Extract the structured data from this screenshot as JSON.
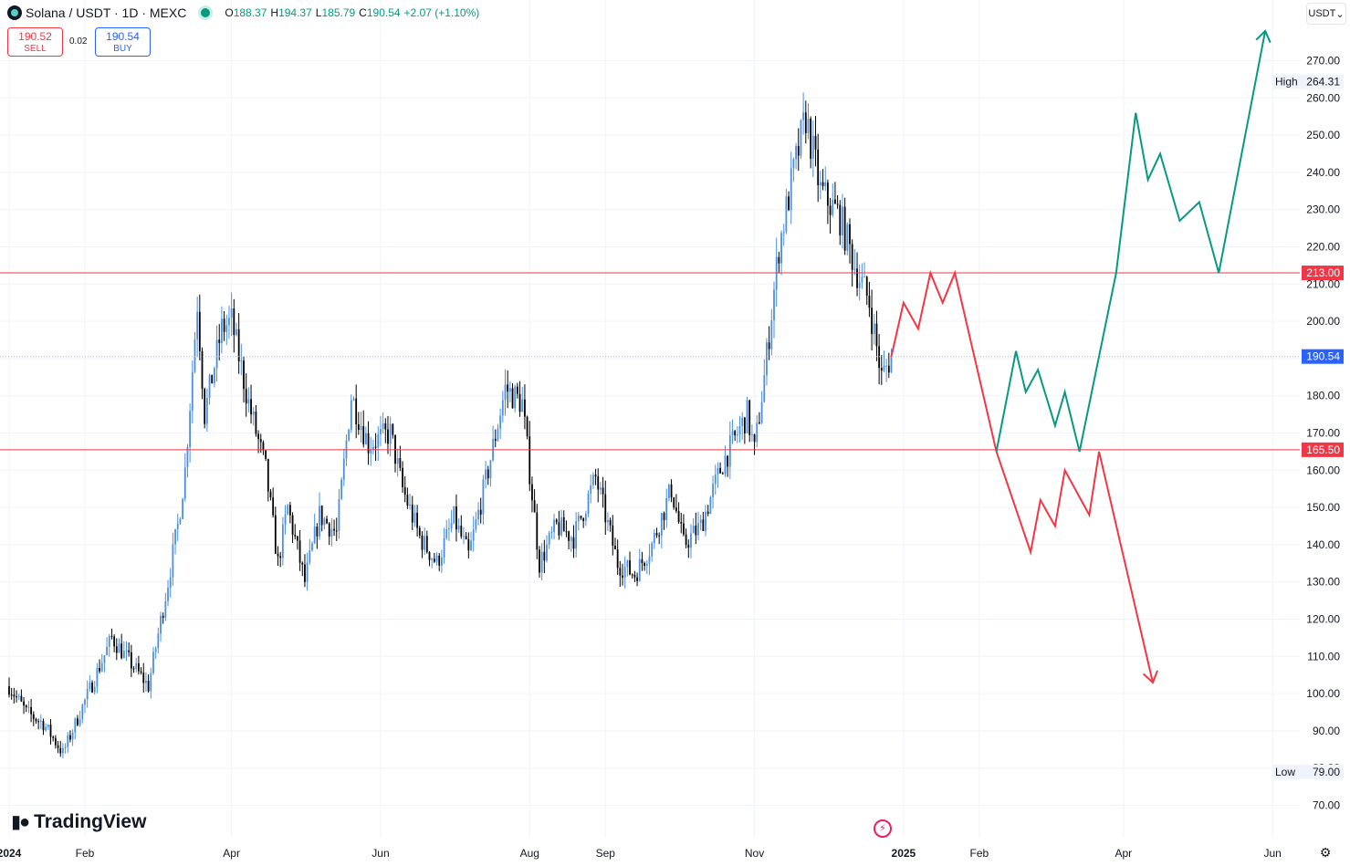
{
  "header": {
    "symbol": "Solana / USDT · 1D · MEXC",
    "open_label": "O",
    "open": "188.37",
    "high_label": "H",
    "high": "194.37",
    "low_label": "L",
    "low": "185.79",
    "close_label": "C",
    "close": "190.54",
    "change": "+2.07 (+1.10%)"
  },
  "trade": {
    "sell_price": "190.52",
    "sell_label": "SELL",
    "spread": "0.02",
    "buy_price": "190.54",
    "buy_label": "BUY"
  },
  "currency_selector": "USDT",
  "watermark": "TradingView",
  "colors": {
    "up": "#4a90e2",
    "down": "#000000",
    "level": "#f23645",
    "bull_path": "#089981",
    "bear_path": "#f23645",
    "last_price": "#2962ff"
  },
  "chart_data": {
    "type": "candlestick",
    "title": "Solana / USDT · 1D · MEXC",
    "x_axis": {
      "labels": [
        "2024",
        "Feb",
        "Apr",
        "Jun",
        "Aug",
        "Sep",
        "Nov",
        "2025",
        "Feb",
        "Apr",
        "Jun"
      ],
      "label_dates": [
        "2024-01-01",
        "2024-02-01",
        "2024-04-01",
        "2024-06-01",
        "2024-08-01",
        "2024-09-01",
        "2024-11-01",
        "2025-01-01",
        "2025-02-01",
        "2025-04-01",
        "2025-06-01"
      ]
    },
    "y_axis": {
      "ticks": [
        70,
        80,
        90,
        100,
        110,
        120,
        130,
        140,
        150,
        160,
        170,
        180,
        190,
        200,
        210,
        220,
        230,
        240,
        250,
        260,
        270
      ],
      "range": [
        66,
        283
      ],
      "side": "right"
    },
    "price_anchors": [
      [
        "2024-01-01",
        102
      ],
      [
        "2024-01-08",
        95
      ],
      [
        "2024-01-15",
        92
      ],
      [
        "2024-01-23",
        84
      ],
      [
        "2024-02-01",
        98
      ],
      [
        "2024-02-12",
        115
      ],
      [
        "2024-02-20",
        108
      ],
      [
        "2024-02-27",
        102
      ],
      [
        "2024-03-06",
        130
      ],
      [
        "2024-03-10",
        145
      ],
      [
        "2024-03-13",
        160
      ],
      [
        "2024-03-18",
        205
      ],
      [
        "2024-03-21",
        175
      ],
      [
        "2024-03-28",
        198
      ],
      [
        "2024-04-01",
        200
      ],
      [
        "2024-04-08",
        178
      ],
      [
        "2024-04-15",
        160
      ],
      [
        "2024-04-20",
        135
      ],
      [
        "2024-04-24",
        150
      ],
      [
        "2024-05-01",
        130
      ],
      [
        "2024-05-07",
        148
      ],
      [
        "2024-05-14",
        143
      ],
      [
        "2024-05-20",
        180
      ],
      [
        "2024-05-27",
        167
      ],
      [
        "2024-06-05",
        170
      ],
      [
        "2024-06-10",
        155
      ],
      [
        "2024-06-17",
        142
      ],
      [
        "2024-06-24",
        135
      ],
      [
        "2024-07-01",
        147
      ],
      [
        "2024-07-07",
        137
      ],
      [
        "2024-07-15",
        160
      ],
      [
        "2024-07-22",
        182
      ],
      [
        "2024-07-29",
        178
      ],
      [
        "2024-08-05",
        135
      ],
      [
        "2024-08-12",
        145
      ],
      [
        "2024-08-19",
        142
      ],
      [
        "2024-08-28",
        158
      ],
      [
        "2024-09-06",
        135
      ],
      [
        "2024-09-13",
        132
      ],
      [
        "2024-09-20",
        140
      ],
      [
        "2024-09-28",
        155
      ],
      [
        "2024-10-03",
        140
      ],
      [
        "2024-10-10",
        145
      ],
      [
        "2024-10-19",
        162
      ],
      [
        "2024-10-29",
        175
      ],
      [
        "2024-11-01",
        165
      ],
      [
        "2024-11-05",
        185
      ],
      [
        "2024-11-11",
        220
      ],
      [
        "2024-11-17",
        240
      ],
      [
        "2024-11-22",
        255
      ],
      [
        "2024-11-28",
        235
      ],
      [
        "2024-12-06",
        228
      ],
      [
        "2024-12-12",
        215
      ],
      [
        "2024-12-18",
        205
      ],
      [
        "2024-12-23",
        185
      ],
      [
        "2024-12-27",
        190.54
      ]
    ],
    "extremes": {
      "high_label": "High",
      "high": 264.31,
      "low_label": "Low",
      "low": 79.0
    },
    "horizontal_levels": [
      213.0,
      165.5
    ],
    "last_price": 190.54,
    "projections": {
      "bearish_path": [
        [
          "2024-12-27",
          190.54
        ],
        [
          "2025-01-01",
          205
        ],
        [
          "2025-01-07",
          198
        ],
        [
          "2025-01-12",
          213
        ],
        [
          "2025-01-17",
          205
        ],
        [
          "2025-01-22",
          213
        ],
        [
          "2025-02-08",
          165
        ],
        [
          "2025-02-22",
          138
        ],
        [
          "2025-02-26",
          152
        ],
        [
          "2025-03-04",
          145
        ],
        [
          "2025-03-08",
          160
        ],
        [
          "2025-03-18",
          148
        ],
        [
          "2025-03-22",
          165
        ],
        [
          "2025-04-13",
          103
        ]
      ],
      "bullish_path": [
        [
          "2025-02-08",
          165
        ],
        [
          "2025-02-16",
          192
        ],
        [
          "2025-02-20",
          181
        ],
        [
          "2025-02-25",
          187
        ],
        [
          "2025-03-04",
          172
        ],
        [
          "2025-03-08",
          181
        ],
        [
          "2025-03-14",
          165
        ],
        [
          "2025-03-29",
          213
        ],
        [
          "2025-04-06",
          256
        ],
        [
          "2025-04-11",
          238
        ],
        [
          "2025-04-16",
          245
        ],
        [
          "2025-04-24",
          227
        ],
        [
          "2025-05-02",
          232
        ],
        [
          "2025-05-10",
          213
        ],
        [
          "2025-05-29",
          278
        ]
      ]
    }
  }
}
